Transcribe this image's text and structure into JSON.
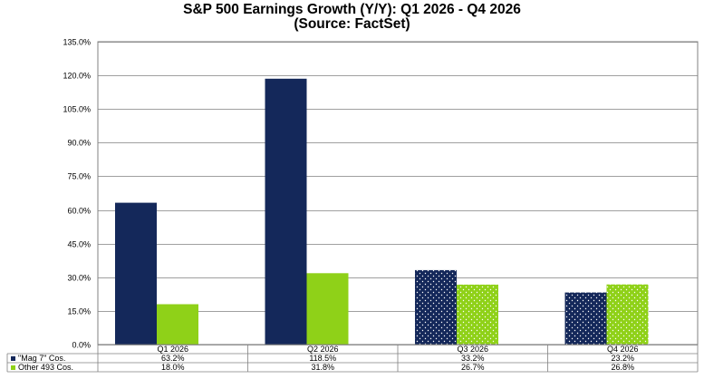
{
  "chart_data": {
    "type": "bar",
    "title": "S&P 500 Earnings Growth (Y/Y): Q1 2026 - Q4 2026",
    "subtitle": "(Source: FactSet)",
    "categories": [
      "Q1 2026",
      "Q2 2026",
      "Q3 2026",
      "Q4 2026"
    ],
    "series": [
      {
        "name": "\"Mag 7\" Cos.",
        "values": [
          63.2,
          118.5,
          33.2,
          23.2
        ],
        "labels": [
          "63.2%",
          "118.5%",
          "33.2%",
          "23.2%"
        ],
        "color": "#14285a",
        "patterned": [
          false,
          false,
          true,
          true
        ]
      },
      {
        "name": "Other 493 Cos.",
        "values": [
          18.0,
          31.8,
          26.7,
          26.8
        ],
        "labels": [
          "18.0%",
          "31.8%",
          "26.7%",
          "26.8%"
        ],
        "color": "#8fd118",
        "patterned": [
          false,
          false,
          true,
          true
        ]
      }
    ],
    "ylim": [
      0,
      135
    ],
    "yticks": [
      "0.0%",
      "15.0%",
      "30.0%",
      "45.0%",
      "60.0%",
      "75.0%",
      "90.0%",
      "105.0%",
      "120.0%",
      "135.0%"
    ],
    "grid": true,
    "legend": "data-table"
  }
}
